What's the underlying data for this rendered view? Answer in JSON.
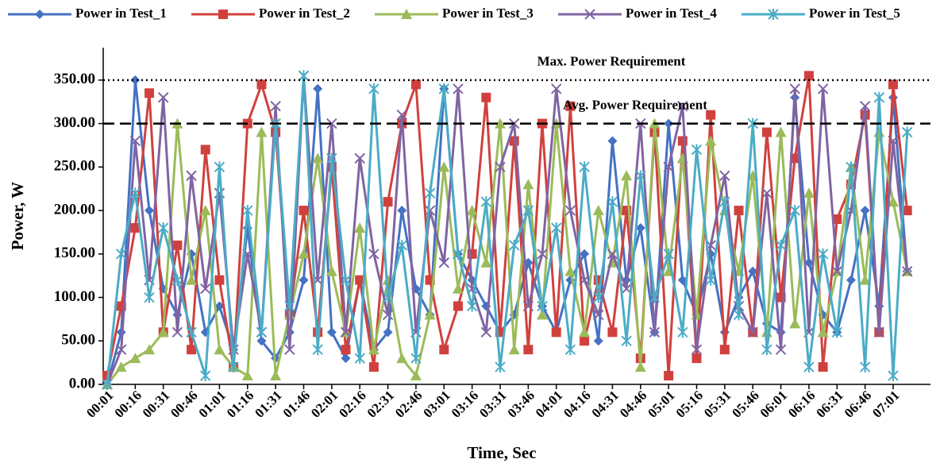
{
  "chart_data": {
    "type": "line",
    "xlabel": "Time, Sec",
    "ylabel": "Power, W",
    "ylim": [
      0,
      380
    ],
    "yticks": [
      {
        "value": 0,
        "label": "0.00"
      },
      {
        "value": 50,
        "label": "50.00"
      },
      {
        "value": 100,
        "label": "100.00"
      },
      {
        "value": 150,
        "label": "150.00"
      },
      {
        "value": 200,
        "label": "200.00"
      },
      {
        "value": 250,
        "label": "250.00"
      },
      {
        "value": 300,
        "label": "300.00"
      },
      {
        "value": 350,
        "label": "350.00"
      }
    ],
    "reference_lines": [
      {
        "value": 350,
        "label": "Max. Power Requirement",
        "style": "dotted"
      },
      {
        "value": 300,
        "label": "Avg. Power Requirement",
        "style": "dashed"
      }
    ],
    "legend": "top",
    "categories": [
      "00:01",
      null,
      "00:16",
      null,
      "00:31",
      null,
      "00:46",
      null,
      "01:01",
      null,
      "01:16",
      null,
      "01:31",
      null,
      "01:46",
      null,
      "02:01",
      null,
      "02:16",
      null,
      "02:31",
      null,
      "02:46",
      null,
      "03:01",
      null,
      "03:16",
      null,
      "03:31",
      null,
      "03:46",
      null,
      "04:01",
      null,
      "04:16",
      null,
      "04:31",
      null,
      "04:46",
      null,
      "05:01",
      null,
      "05:16",
      null,
      "05:31",
      null,
      "05:46",
      null,
      "06:01",
      null,
      "06:16",
      null,
      "06:31",
      null,
      "06:46",
      null,
      "07:01",
      null
    ],
    "series": [
      {
        "name": "Power in Test_1",
        "color": "#4472c4",
        "marker": "diamond",
        "values": [
          0,
          60,
          350,
          200,
          110,
          80,
          150,
          60,
          90,
          40,
          180,
          50,
          30,
          60,
          120,
          340,
          60,
          30,
          120,
          40,
          60,
          200,
          110,
          80,
          340,
          150,
          120,
          90,
          60,
          80,
          140,
          90,
          60,
          120,
          150,
          50,
          280,
          120,
          180,
          60,
          300,
          120,
          80,
          150,
          60,
          100,
          130,
          70,
          60,
          330,
          140,
          80,
          60,
          120,
          200,
          90,
          330,
          130
        ]
      },
      {
        "name": "Power in Test_2",
        "color": "#d0413e",
        "marker": "square",
        "values": [
          10,
          90,
          180,
          335,
          60,
          160,
          40,
          270,
          120,
          20,
          300,
          345,
          290,
          80,
          200,
          60,
          250,
          40,
          120,
          20,
          210,
          300,
          345,
          120,
          40,
          90,
          150,
          330,
          60,
          280,
          40,
          300,
          60,
          320,
          50,
          120,
          60,
          200,
          30,
          290,
          10,
          280,
          30,
          310,
          40,
          200,
          60,
          290,
          100,
          260,
          355,
          20,
          190,
          230,
          310,
          60,
          345,
          200
        ]
      },
      {
        "name": "Power in Test_3",
        "color": "#9bbb59",
        "marker": "triangle",
        "values": [
          0,
          20,
          30,
          40,
          60,
          300,
          120,
          200,
          40,
          20,
          10,
          290,
          10,
          80,
          150,
          260,
          130,
          60,
          180,
          40,
          120,
          30,
          10,
          80,
          250,
          110,
          200,
          140,
          300,
          40,
          230,
          80,
          300,
          130,
          60,
          200,
          140,
          240,
          20,
          300,
          130,
          260,
          80,
          280,
          200,
          130,
          240,
          60,
          290,
          70,
          220,
          60,
          130,
          250,
          120,
          290,
          210,
          130
        ]
      },
      {
        "name": "Power in Test_4",
        "color": "#8064a2",
        "marker": "x",
        "values": [
          0,
          40,
          280,
          120,
          330,
          60,
          240,
          110,
          220,
          40,
          150,
          60,
          320,
          40,
          355,
          120,
          300,
          60,
          260,
          150,
          80,
          310,
          60,
          200,
          140,
          340,
          110,
          60,
          250,
          300,
          90,
          150,
          340,
          200,
          120,
          80,
          150,
          110,
          300,
          60,
          250,
          320,
          40,
          160,
          240,
          90,
          60,
          220,
          40,
          340,
          60,
          340,
          130,
          200,
          320,
          60,
          280,
          130
        ]
      },
      {
        "name": "Power in Test_5",
        "color": "#4bacc6",
        "marker": "star",
        "values": [
          0,
          150,
          220,
          100,
          180,
          120,
          60,
          10,
          250,
          20,
          200,
          60,
          300,
          90,
          355,
          40,
          260,
          120,
          30,
          340,
          100,
          160,
          30,
          220,
          340,
          150,
          90,
          210,
          20,
          160,
          200,
          90,
          180,
          40,
          250,
          100,
          210,
          50,
          240,
          100,
          150,
          60,
          270,
          120,
          210,
          80,
          300,
          40,
          160,
          200,
          20,
          150,
          60,
          250,
          20,
          330,
          10,
          290
        ]
      }
    ]
  }
}
